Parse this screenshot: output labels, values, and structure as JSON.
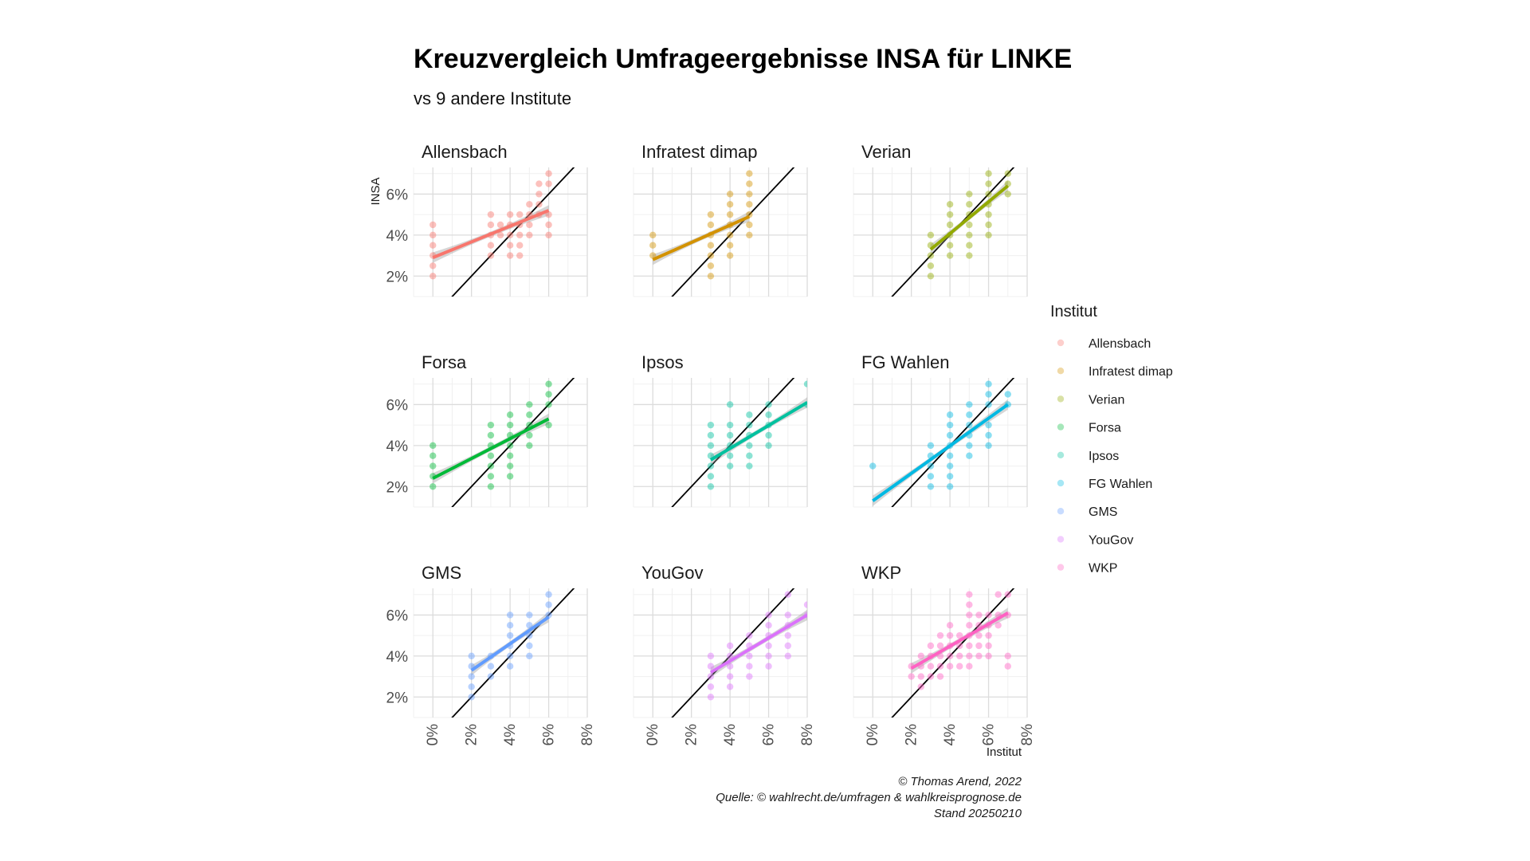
{
  "chart_data": {
    "type": "scatter",
    "title": "Kreuzvergleich Umfrageergebnisse INSA für LINKE",
    "subtitle": "vs 9 andere Institute",
    "xlabel": "Institut",
    "ylabel": "INSA",
    "xlim": [
      -1,
      8
    ],
    "ylim": [
      1,
      7.3
    ],
    "x_ticks": [
      "0%",
      "2%",
      "4%",
      "6%",
      "8%"
    ],
    "y_ticks": [
      "2%",
      "4%",
      "6%"
    ],
    "grid": true,
    "legend_title": "Institut",
    "legend_position": "right",
    "caption": [
      "© Thomas Arend, 2022",
      "Quelle: © wahlrecht.de/umfragen & wahlkreisprognose.de",
      "Stand 20250210"
    ],
    "panels": [
      {
        "name": "Allensbach",
        "color": "#F8766D",
        "points": [
          [
            0,
            4.5
          ],
          [
            0,
            4
          ],
          [
            0,
            3.5
          ],
          [
            0,
            3
          ],
          [
            0,
            2.5
          ],
          [
            0,
            2
          ],
          [
            3,
            5
          ],
          [
            3,
            4.5
          ],
          [
            3,
            4
          ],
          [
            3,
            3.5
          ],
          [
            3,
            3
          ],
          [
            3.5,
            4.5
          ],
          [
            3.5,
            4
          ],
          [
            4,
            5
          ],
          [
            4,
            4.5
          ],
          [
            4,
            4
          ],
          [
            4,
            3.5
          ],
          [
            4,
            3
          ],
          [
            4.5,
            5
          ],
          [
            4.5,
            4.5
          ],
          [
            4.5,
            4
          ],
          [
            4.5,
            3.5
          ],
          [
            4.5,
            3
          ],
          [
            5,
            5.5
          ],
          [
            5,
            5
          ],
          [
            5,
            4.5
          ],
          [
            5,
            4
          ],
          [
            5.5,
            6.5
          ],
          [
            5.5,
            6
          ],
          [
            5.5,
            5.5
          ],
          [
            5.5,
            5
          ],
          [
            6,
            7
          ],
          [
            6,
            6.5
          ],
          [
            6,
            5
          ],
          [
            6,
            4.5
          ],
          [
            6,
            4
          ]
        ],
        "fit": {
          "x": [
            0,
            6
          ],
          "y": [
            2.9,
            5.2
          ]
        }
      },
      {
        "name": "Infratest dimap",
        "color": "#D39200",
        "points": [
          [
            0,
            4
          ],
          [
            0,
            3.5
          ],
          [
            0,
            3
          ],
          [
            3,
            5
          ],
          [
            3,
            4.5
          ],
          [
            3,
            4
          ],
          [
            3,
            3.5
          ],
          [
            3,
            3
          ],
          [
            3,
            2.5
          ],
          [
            3,
            2
          ],
          [
            4,
            6
          ],
          [
            4,
            5.5
          ],
          [
            4,
            5
          ],
          [
            4,
            4.5
          ],
          [
            4,
            4
          ],
          [
            4,
            3.5
          ],
          [
            4,
            3
          ],
          [
            5,
            7
          ],
          [
            5,
            6.5
          ],
          [
            5,
            6
          ],
          [
            5,
            5.5
          ],
          [
            5,
            5
          ],
          [
            5,
            4.5
          ],
          [
            5,
            4
          ]
        ],
        "fit": {
          "x": [
            0,
            5
          ],
          "y": [
            2.8,
            4.9
          ]
        }
      },
      {
        "name": "Verian",
        "color": "#93AA00",
        "points": [
          [
            3,
            4
          ],
          [
            3,
            3.5
          ],
          [
            3,
            3
          ],
          [
            3,
            2.5
          ],
          [
            3,
            2
          ],
          [
            4,
            5.5
          ],
          [
            4,
            5
          ],
          [
            4,
            4.5
          ],
          [
            4,
            4
          ],
          [
            4,
            3.5
          ],
          [
            4,
            3
          ],
          [
            5,
            6
          ],
          [
            5,
            5.5
          ],
          [
            5,
            5
          ],
          [
            5,
            4.5
          ],
          [
            5,
            4
          ],
          [
            5,
            3.5
          ],
          [
            5,
            3
          ],
          [
            6,
            7
          ],
          [
            6,
            6.5
          ],
          [
            6,
            6
          ],
          [
            6,
            5.5
          ],
          [
            6,
            5
          ],
          [
            6,
            4.5
          ],
          [
            6,
            4
          ],
          [
            7,
            7
          ],
          [
            7,
            6.5
          ],
          [
            7,
            6
          ]
        ],
        "fit": {
          "x": [
            3,
            7
          ],
          "y": [
            3.3,
            6.4
          ]
        }
      },
      {
        "name": "Forsa",
        "color": "#00BA38",
        "points": [
          [
            0,
            4
          ],
          [
            0,
            3.5
          ],
          [
            0,
            3
          ],
          [
            0,
            2.5
          ],
          [
            0,
            2
          ],
          [
            3,
            5
          ],
          [
            3,
            4.5
          ],
          [
            3,
            4
          ],
          [
            3,
            3.5
          ],
          [
            3,
            3
          ],
          [
            3,
            2.5
          ],
          [
            3,
            2
          ],
          [
            4,
            5.5
          ],
          [
            4,
            5
          ],
          [
            4,
            4.5
          ],
          [
            4,
            4
          ],
          [
            4,
            3.5
          ],
          [
            4,
            3
          ],
          [
            4,
            2.5
          ],
          [
            5,
            6
          ],
          [
            5,
            5.5
          ],
          [
            5,
            5
          ],
          [
            5,
            4.5
          ],
          [
            5,
            4
          ],
          [
            6,
            7
          ],
          [
            6,
            6.5
          ],
          [
            6,
            6
          ],
          [
            6,
            5
          ]
        ],
        "fit": {
          "x": [
            0,
            6
          ],
          "y": [
            2.4,
            5.3
          ]
        }
      },
      {
        "name": "Ipsos",
        "color": "#00C19F",
        "points": [
          [
            3,
            5
          ],
          [
            3,
            4.5
          ],
          [
            3,
            4
          ],
          [
            3,
            3.5
          ],
          [
            3,
            3
          ],
          [
            3,
            2.5
          ],
          [
            3,
            2
          ],
          [
            4,
            6
          ],
          [
            4,
            5
          ],
          [
            4,
            4.5
          ],
          [
            4,
            4
          ],
          [
            4,
            3.5
          ],
          [
            4,
            3
          ],
          [
            5,
            5.5
          ],
          [
            5,
            5
          ],
          [
            5,
            4.5
          ],
          [
            5,
            4
          ],
          [
            5,
            3.5
          ],
          [
            5,
            3
          ],
          [
            6,
            6
          ],
          [
            6,
            5.5
          ],
          [
            6,
            5
          ],
          [
            6,
            4.5
          ],
          [
            6,
            4
          ],
          [
            8,
            7
          ],
          [
            8,
            6
          ]
        ],
        "fit": {
          "x": [
            3,
            8
          ],
          "y": [
            3.3,
            6.1
          ]
        }
      },
      {
        "name": "FG Wahlen",
        "color": "#00B9E3",
        "points": [
          [
            0,
            3
          ],
          [
            3,
            4
          ],
          [
            3,
            3.5
          ],
          [
            3,
            3
          ],
          [
            3,
            2.5
          ],
          [
            3,
            2
          ],
          [
            4,
            5.5
          ],
          [
            4,
            5
          ],
          [
            4,
            4.5
          ],
          [
            4,
            4
          ],
          [
            4,
            3.5
          ],
          [
            4,
            3
          ],
          [
            4,
            2.5
          ],
          [
            4,
            2
          ],
          [
            5,
            6
          ],
          [
            5,
            5.5
          ],
          [
            5,
            5
          ],
          [
            5,
            4.5
          ],
          [
            5,
            4
          ],
          [
            5,
            3.5
          ],
          [
            6,
            7
          ],
          [
            6,
            6.5
          ],
          [
            6,
            6
          ],
          [
            6,
            5
          ],
          [
            6,
            4.5
          ],
          [
            6,
            4
          ],
          [
            7,
            6.5
          ],
          [
            7,
            6
          ]
        ],
        "fit": {
          "x": [
            0,
            7
          ],
          "y": [
            1.3,
            6.0
          ]
        }
      },
      {
        "name": "GMS",
        "color": "#619CFF",
        "points": [
          [
            2,
            4
          ],
          [
            2,
            3.5
          ],
          [
            2,
            3
          ],
          [
            2,
            2.5
          ],
          [
            2,
            2
          ],
          [
            3,
            4
          ],
          [
            3,
            3.5
          ],
          [
            3,
            3
          ],
          [
            4,
            6
          ],
          [
            4,
            5.5
          ],
          [
            4,
            5
          ],
          [
            4,
            4.5
          ],
          [
            4,
            4
          ],
          [
            4,
            3.5
          ],
          [
            5,
            6
          ],
          [
            5,
            5.5
          ],
          [
            5,
            5
          ],
          [
            5,
            4.5
          ],
          [
            5,
            4
          ],
          [
            6,
            7
          ],
          [
            6,
            6.5
          ],
          [
            6,
            6
          ]
        ],
        "fit": {
          "x": [
            2,
            6
          ],
          "y": [
            3.3,
            5.9
          ]
        }
      },
      {
        "name": "YouGov",
        "color": "#DB72FB",
        "points": [
          [
            3,
            4
          ],
          [
            3,
            3.5
          ],
          [
            3,
            3
          ],
          [
            3,
            2.5
          ],
          [
            3,
            2
          ],
          [
            4,
            4.5
          ],
          [
            4,
            4
          ],
          [
            4,
            3.5
          ],
          [
            4,
            3
          ],
          [
            4,
            2.5
          ],
          [
            5,
            5
          ],
          [
            5,
            4.5
          ],
          [
            5,
            4
          ],
          [
            5,
            3.5
          ],
          [
            5,
            3
          ],
          [
            6,
            6
          ],
          [
            6,
            5.5
          ],
          [
            6,
            5
          ],
          [
            6,
            4.5
          ],
          [
            6,
            4
          ],
          [
            6,
            3.5
          ],
          [
            7,
            7
          ],
          [
            7,
            6
          ],
          [
            7,
            5.5
          ],
          [
            7,
            5
          ],
          [
            7,
            4.5
          ],
          [
            7,
            4
          ],
          [
            8,
            6.5
          ],
          [
            8,
            6
          ]
        ],
        "fit": {
          "x": [
            3,
            8
          ],
          "y": [
            3.2,
            6.0
          ]
        }
      },
      {
        "name": "WKP",
        "color": "#FF61C3",
        "points": [
          [
            2,
            3.5
          ],
          [
            2,
            3
          ],
          [
            2.5,
            4
          ],
          [
            2.5,
            3.5
          ],
          [
            2.5,
            3
          ],
          [
            2.5,
            2.5
          ],
          [
            3,
            4.5
          ],
          [
            3,
            4
          ],
          [
            3,
            3.5
          ],
          [
            3,
            3
          ],
          [
            3.5,
            5
          ],
          [
            3.5,
            4.5
          ],
          [
            3.5,
            4
          ],
          [
            3.5,
            3.5
          ],
          [
            3.5,
            3
          ],
          [
            4,
            5.5
          ],
          [
            4,
            5
          ],
          [
            4,
            4.5
          ],
          [
            4,
            4
          ],
          [
            4,
            3.5
          ],
          [
            4.5,
            5
          ],
          [
            4.5,
            4.5
          ],
          [
            4.5,
            4
          ],
          [
            4.5,
            3.5
          ],
          [
            5,
            7
          ],
          [
            5,
            6.5
          ],
          [
            5,
            6
          ],
          [
            5,
            5.5
          ],
          [
            5,
            5
          ],
          [
            5,
            4.5
          ],
          [
            5,
            4
          ],
          [
            5,
            3.5
          ],
          [
            5.5,
            6
          ],
          [
            5.5,
            5.5
          ],
          [
            5.5,
            5
          ],
          [
            5.5,
            4.5
          ],
          [
            5.5,
            4
          ],
          [
            6,
            6
          ],
          [
            6,
            5.5
          ],
          [
            6,
            5
          ],
          [
            6,
            4.5
          ],
          [
            6,
            4
          ],
          [
            6.5,
            7
          ],
          [
            6.5,
            6
          ],
          [
            6.5,
            5.5
          ],
          [
            7,
            7
          ],
          [
            7,
            6
          ],
          [
            7,
            4
          ],
          [
            7,
            3.5
          ]
        ],
        "fit": {
          "x": [
            2,
            7
          ],
          "y": [
            3.4,
            6.1
          ]
        }
      }
    ]
  }
}
